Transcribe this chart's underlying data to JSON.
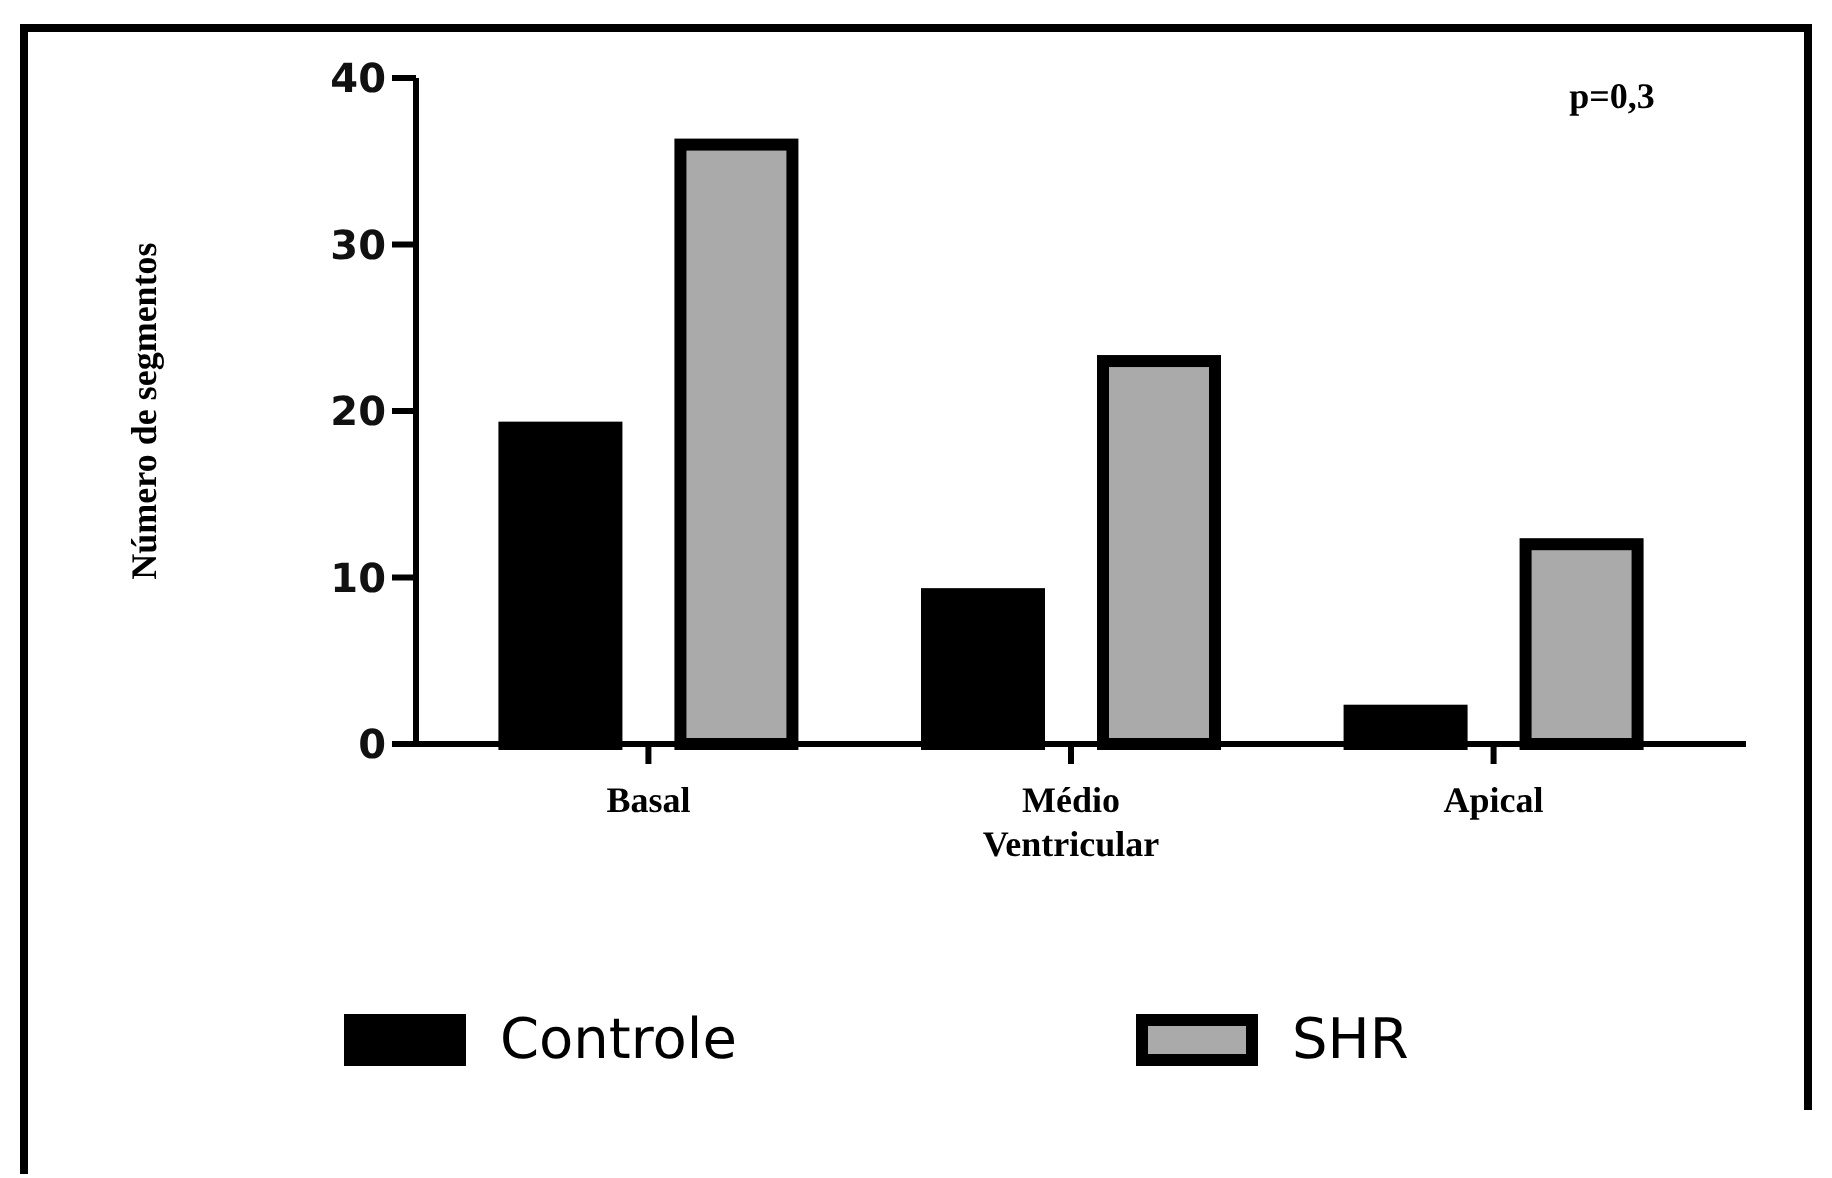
{
  "chart_data": {
    "type": "bar",
    "ylabel": "Número de segmentos",
    "categories": [
      "Basal",
      "Médio Ventricular",
      "Apical"
    ],
    "series": [
      {
        "name": "Controle",
        "color": "#000000",
        "values": [
          19,
          9,
          2
        ]
      },
      {
        "name": "SHR",
        "color": "#aaaaaa",
        "values": [
          36,
          23,
          12
        ]
      }
    ],
    "ylim": [
      0,
      40
    ],
    "yticks": [
      0,
      10,
      20,
      30,
      40
    ],
    "grid": false,
    "legend": "bottom",
    "annotations": [
      "p=0,3"
    ]
  }
}
